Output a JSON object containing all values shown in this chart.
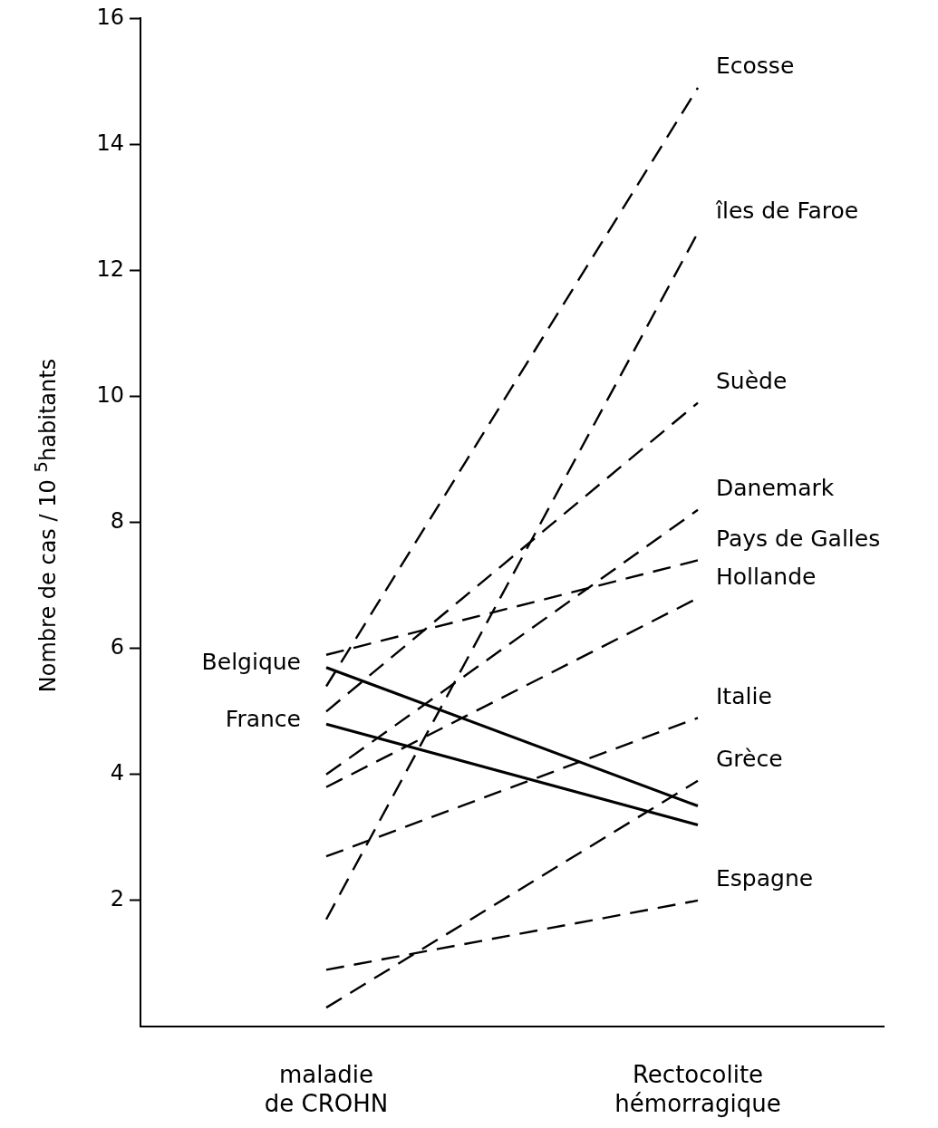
{
  "chart_data": {
    "type": "line",
    "ylabel": "Nombre de cas / 10 $^{5}$habitants",
    "categories": [
      "maladie de CROHN",
      "Rectocolite hémorragique"
    ],
    "ylim": [
      0,
      16
    ],
    "yticks": [
      2,
      4,
      6,
      8,
      10,
      12,
      14,
      16
    ],
    "grid": false,
    "legend": false,
    "marker": "none",
    "series": [
      {
        "name": "Ecosse",
        "color": "#000000",
        "line_style": "dashed",
        "values": [
          5.4,
          14.9
        ]
      },
      {
        "name": "îles de Faroe",
        "color": "#000000",
        "line_style": "dashed",
        "values": [
          1.7,
          12.6
        ]
      },
      {
        "name": "Suède",
        "color": "#000000",
        "line_style": "dashed",
        "values": [
          5.0,
          9.9
        ]
      },
      {
        "name": "Danemark",
        "color": "#000000",
        "line_style": "dashed",
        "values": [
          4.0,
          8.2
        ]
      },
      {
        "name": "Pays de Galles",
        "color": "#000000",
        "line_style": "dashed",
        "values": [
          5.9,
          7.4
        ]
      },
      {
        "name": "Hollande",
        "color": "#000000",
        "line_style": "dashed",
        "values": [
          3.8,
          6.8
        ]
      },
      {
        "name": "Italie",
        "color": "#000000",
        "line_style": "dashed",
        "values": [
          2.7,
          4.9
        ]
      },
      {
        "name": "Grèce",
        "color": "#000000",
        "line_style": "dashed",
        "values": [
          0.3,
          3.9
        ]
      },
      {
        "name": "Espagne",
        "color": "#000000",
        "line_style": "dashed",
        "values": [
          0.9,
          2.0
        ]
      },
      {
        "name": "Belgique",
        "color": "#000000",
        "line_style": "solid",
        "values": [
          5.7,
          3.5
        ]
      },
      {
        "name": "France",
        "color": "#000000",
        "line_style": "solid",
        "values": [
          4.8,
          3.2
        ]
      }
    ]
  }
}
